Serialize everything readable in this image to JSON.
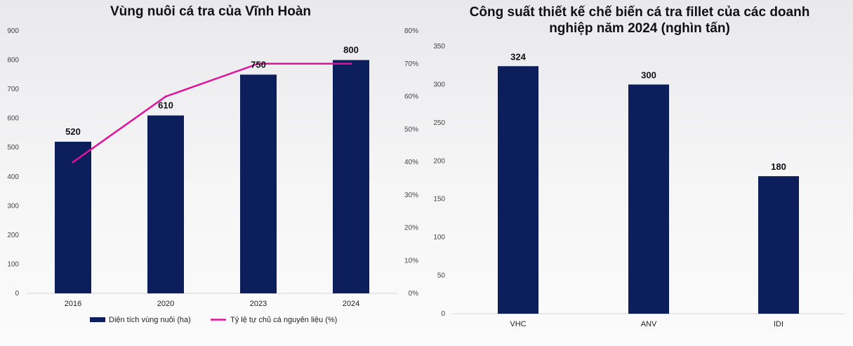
{
  "chart_data": [
    {
      "type": "bar",
      "title": "Vùng nuôi cá tra của Vĩnh Hoàn",
      "categories": [
        "2016",
        "2020",
        "2023",
        "2024"
      ],
      "series": [
        {
          "name": "Diện tích vùng nuôi (ha)",
          "type": "bar",
          "axis": "left",
          "values": [
            520,
            610,
            750,
            800
          ],
          "color": "#0c1f5c",
          "data_labels": [
            "520",
            "610",
            "750",
            "800"
          ]
        },
        {
          "name": "Tỷ lệ tự chủ cá nguyên liệu (%)",
          "type": "line",
          "axis": "right",
          "values": [
            40,
            60,
            70,
            70
          ],
          "color": "#e0119a"
        }
      ],
      "ylim": [
        0,
        900
      ],
      "y_ticks": [
        "0",
        "100",
        "200",
        "300",
        "400",
        "500",
        "600",
        "700",
        "800",
        "900"
      ],
      "y2lim": [
        0,
        80
      ],
      "y2_ticks": [
        "0%",
        "10%",
        "20%",
        "30%",
        "40%",
        "50%",
        "60%",
        "70%",
        "80%"
      ],
      "grid": false,
      "legend": "bottom"
    },
    {
      "type": "bar",
      "title": "Công suất thiết kế chế biến cá tra fillet của các doanh nghiệp năm 2024 (nghìn tấn)",
      "categories": [
        "VHC",
        "ANV",
        "IDI"
      ],
      "values": [
        324,
        300,
        180
      ],
      "data_labels": [
        "324",
        "300",
        "180"
      ],
      "color": "#0c1f5c",
      "ylim": [
        0,
        350
      ],
      "y_ticks": [
        "0",
        "50",
        "100",
        "150",
        "200",
        "250",
        "300",
        "350"
      ],
      "grid": false,
      "legend": "none"
    }
  ]
}
